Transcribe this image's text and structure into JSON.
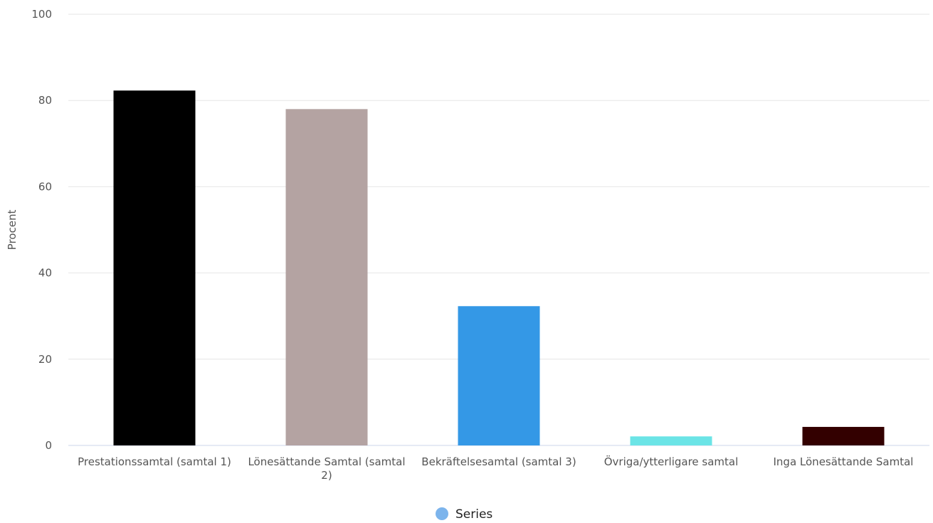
{
  "chart_data": {
    "type": "bar",
    "categories": [
      [
        "Prestationssamtal (samtal 1)"
      ],
      [
        "Lönesättande Samtal (samtal",
        "2)"
      ],
      [
        "Bekräftelsesamtal (samtal 3)"
      ],
      [
        "Övriga/ytterligare samtal"
      ],
      [
        "Inga Lönesättande Samtal"
      ]
    ],
    "series": [
      {
        "name": "Series",
        "values": [
          82.3,
          78.0,
          32.3,
          2.1,
          4.3
        ]
      }
    ],
    "bar_colors": [
      "#000000",
      "#b4a3a2",
      "#3498e6",
      "#6be4e6",
      "#330000"
    ],
    "legend_marker_color": "#7cb4ec",
    "ylabel": "Procent",
    "ylim": [
      0,
      100
    ],
    "yticks": [
      0,
      20,
      40,
      60,
      80,
      100
    ],
    "grid": true,
    "legend_position": "bottom-center"
  }
}
